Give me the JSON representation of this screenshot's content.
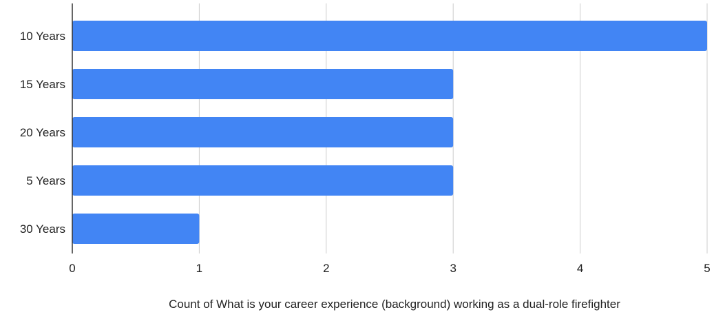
{
  "chart_data": {
    "type": "bar",
    "orientation": "horizontal",
    "categories": [
      "10 Years",
      "15 Years",
      "20 Years",
      "5 Years",
      "30 Years"
    ],
    "values": [
      5,
      3,
      3,
      3,
      1
    ],
    "title": "",
    "xlabel": "Count of What is your career experience (background) working as a dual-role firefighter",
    "ylabel": "",
    "xlim": [
      0,
      5
    ],
    "xticks": [
      "0",
      "1",
      "2",
      "3",
      "4",
      "5"
    ],
    "grid": true,
    "legend": "none",
    "bar_color": "#4285f4"
  }
}
